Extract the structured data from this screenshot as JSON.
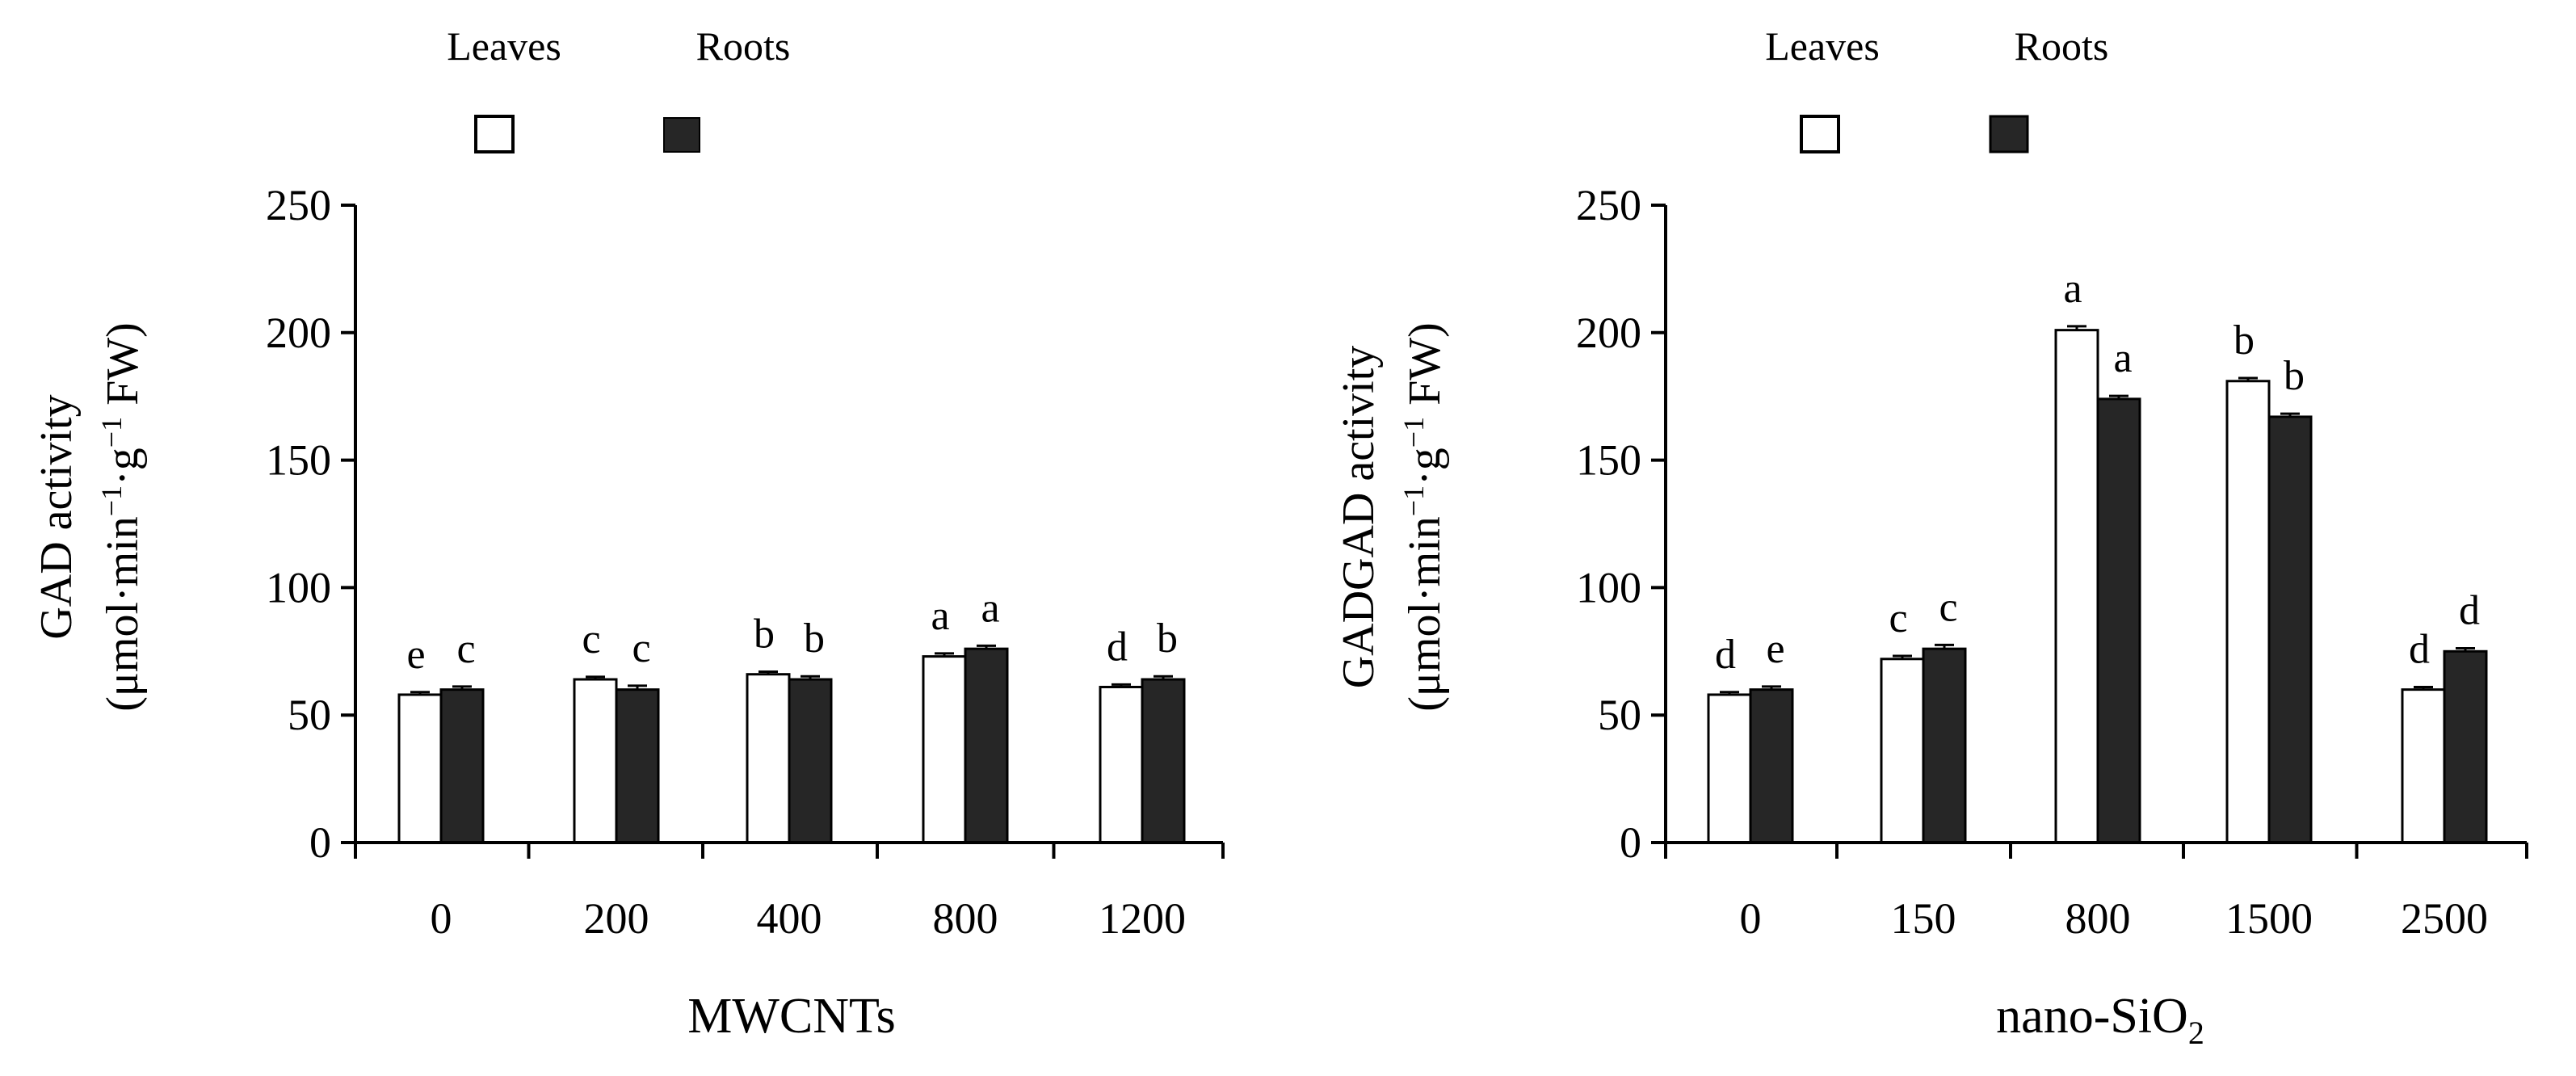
{
  "chart_data": [
    {
      "type": "bar",
      "xlabel": "MWCNTs",
      "ylabel_line1": "GAD activity",
      "ylabel_line2_prefix": "(μmol·min",
      "ylabel_line2_mid": "·g",
      "ylabel_line2_suffix": " FW)",
      "ylabel_sup": "−1",
      "ylim": [
        0,
        250
      ],
      "yticks": [
        0,
        50,
        100,
        150,
        200,
        250
      ],
      "categories": [
        "0",
        "200",
        "400",
        "800",
        "1200"
      ],
      "legend_position": "top",
      "series": [
        {
          "name": "Leaves",
          "fill": "#ffffff",
          "values": [
            58,
            64,
            66,
            73,
            61
          ],
          "errors": [
            1.0,
            1.0,
            1.0,
            1.2,
            1.0
          ],
          "letters": [
            "e",
            "c",
            "b",
            "a",
            "d"
          ]
        },
        {
          "name": "Roots",
          "fill": "#262626",
          "values": [
            60,
            60,
            64,
            76,
            64
          ],
          "errors": [
            1.2,
            1.5,
            1.2,
            1.2,
            1.2
          ],
          "letters": [
            "c",
            "c",
            "b",
            "a",
            "b"
          ]
        }
      ]
    },
    {
      "type": "bar",
      "xlabel": "nano-SiO",
      "xlabel_sub": "2",
      "ylabel_line1": "GADGAD activity",
      "ylabel_line2_prefix": "(μmol·min",
      "ylabel_line2_mid": "·g",
      "ylabel_line2_suffix": " FW)",
      "ylabel_sup": "−1",
      "ylim": [
        0,
        250
      ],
      "yticks": [
        0,
        50,
        100,
        150,
        200,
        250
      ],
      "categories": [
        "0",
        "150",
        "800",
        "1500",
        "2500"
      ],
      "legend_position": "top",
      "series": [
        {
          "name": "Leaves",
          "fill": "#ffffff",
          "values": [
            58,
            72,
            201,
            181,
            60
          ],
          "errors": [
            1.0,
            1.2,
            1.5,
            1.2,
            1.0
          ],
          "letters": [
            "d",
            "c",
            "a",
            "b",
            "d"
          ]
        },
        {
          "name": "Roots",
          "fill": "#262626",
          "values": [
            60,
            76,
            174,
            167,
            75
          ],
          "errors": [
            1.2,
            1.5,
            1.2,
            1.2,
            1.2
          ],
          "letters": [
            "e",
            "c",
            "a",
            "b",
            "d"
          ]
        }
      ]
    }
  ]
}
